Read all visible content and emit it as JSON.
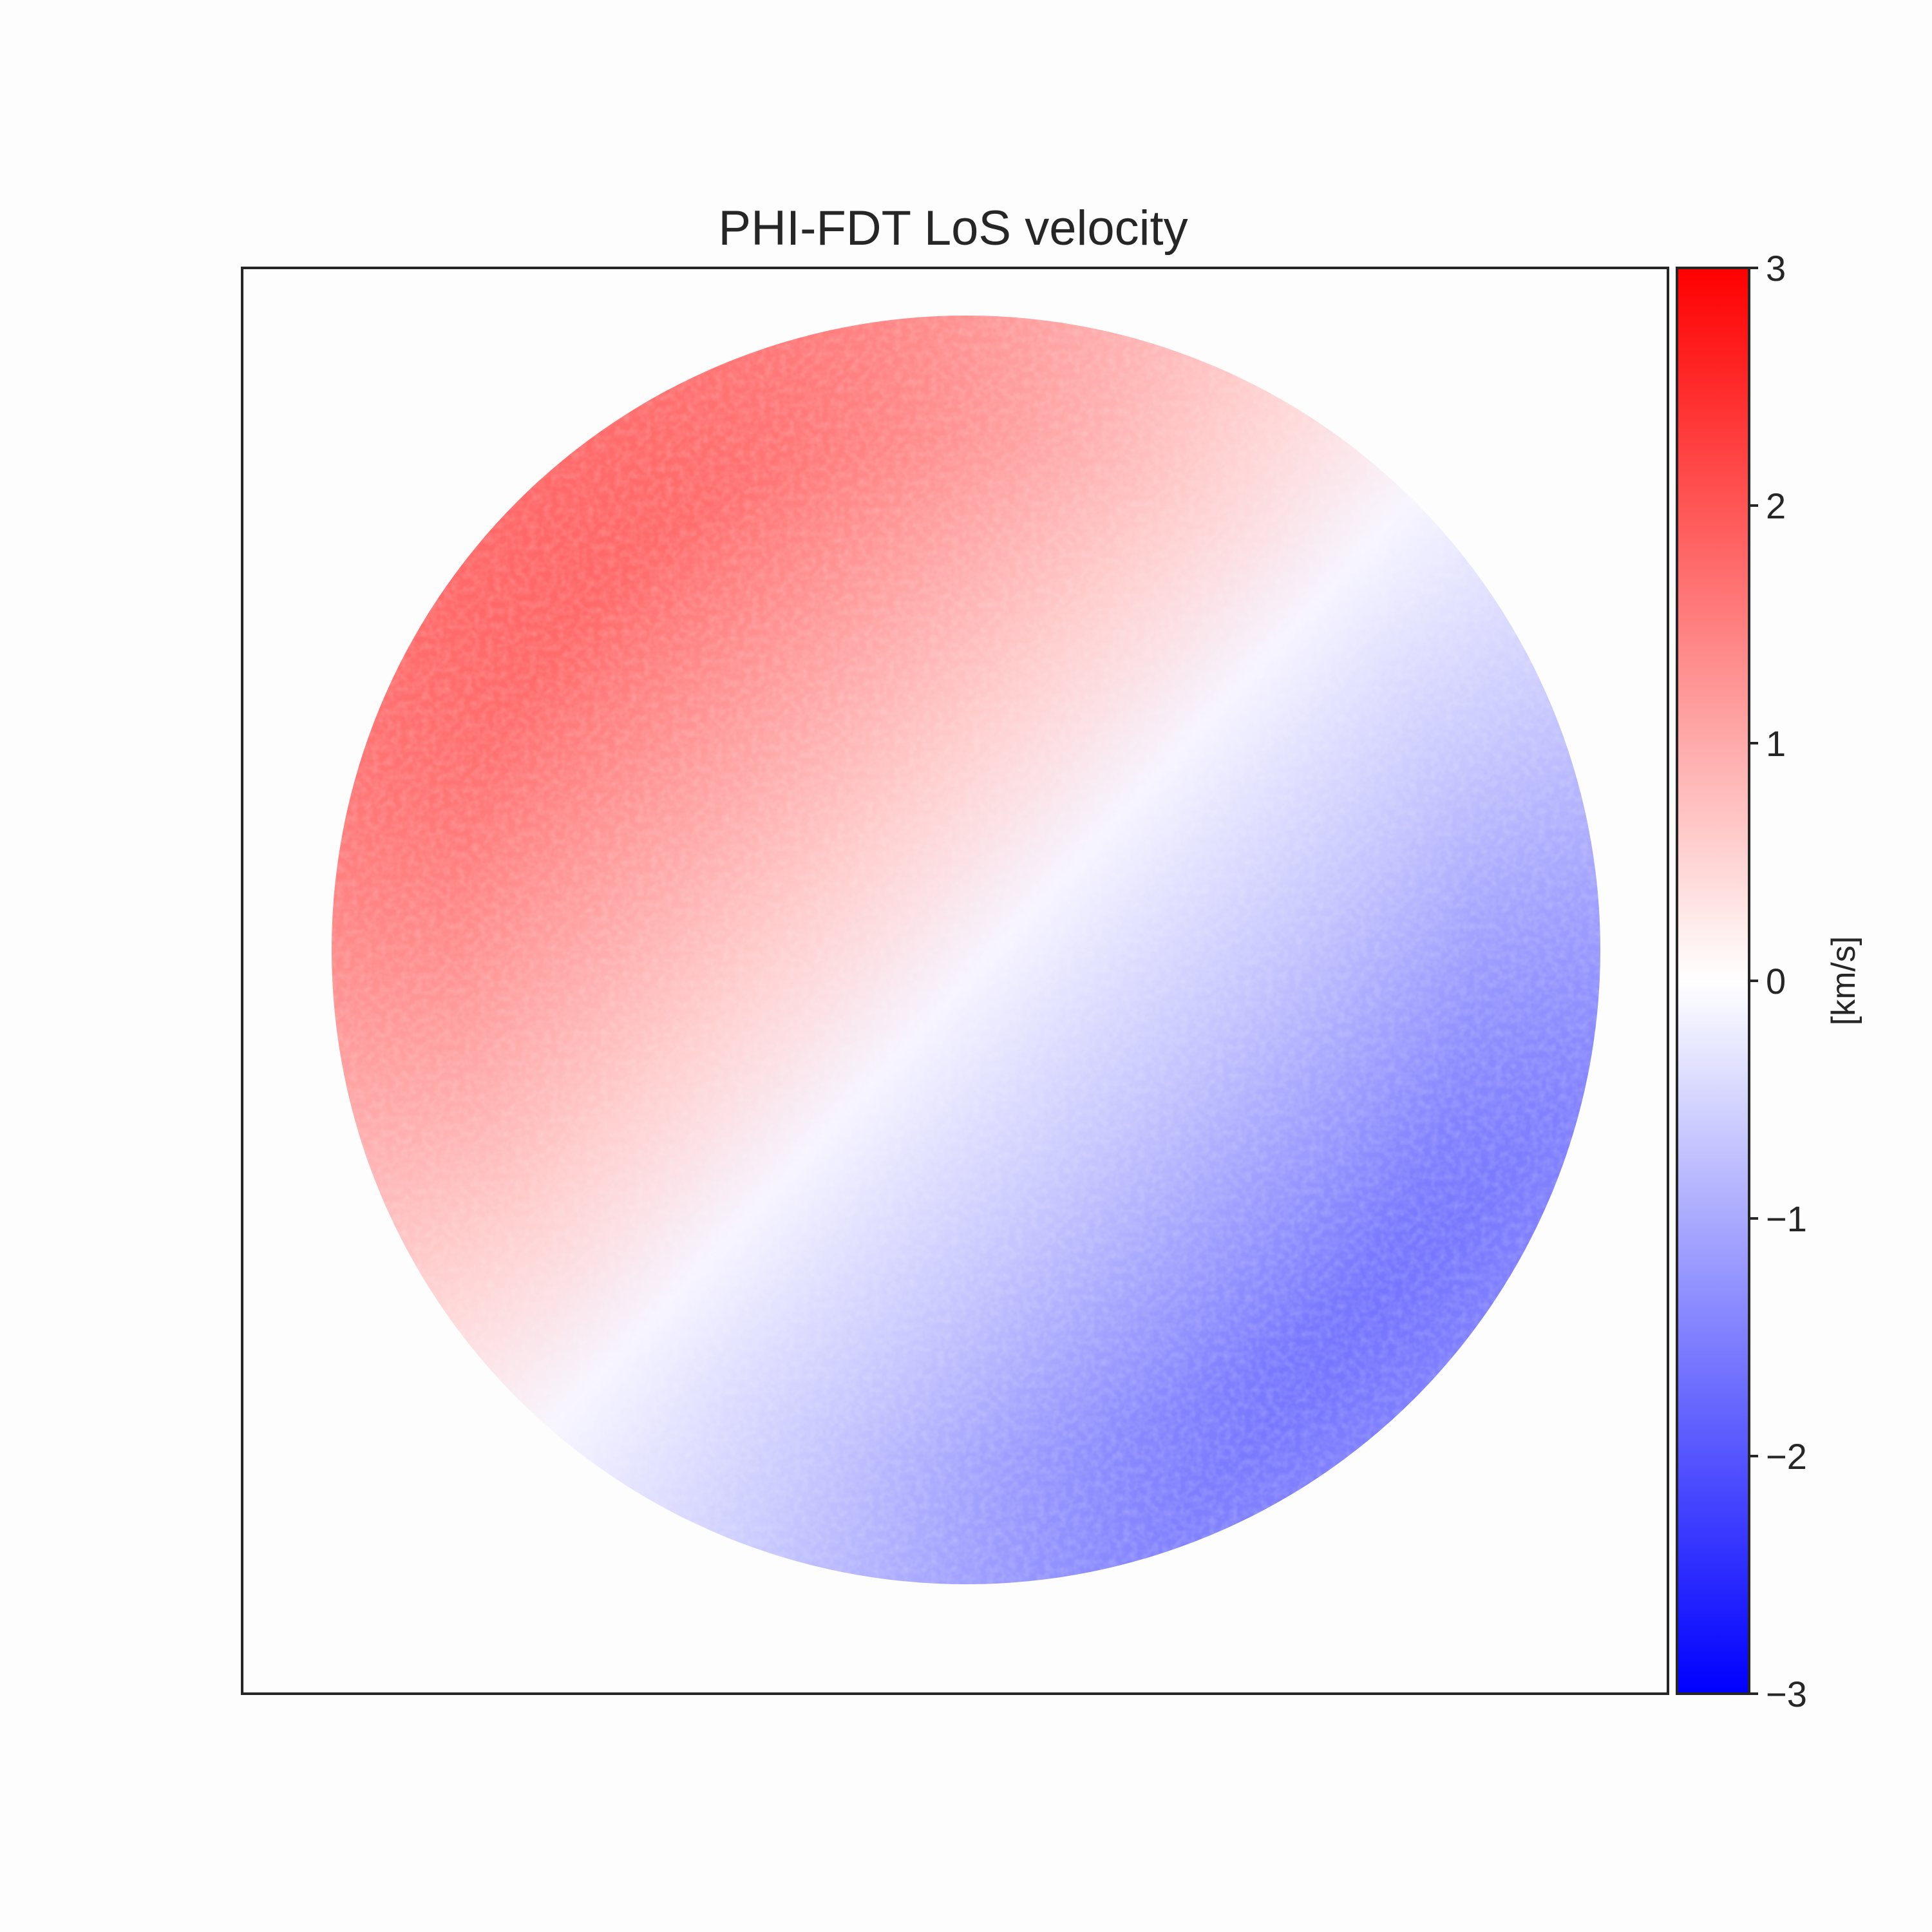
{
  "chart_data": {
    "type": "heatmap",
    "title": "PHI-FDT LoS velocity",
    "xlabel": "",
    "ylabel": "",
    "colorbar": {
      "label": "[km/s]",
      "vmin": -3,
      "vmax": 3,
      "ticks": [
        3,
        2,
        1,
        0,
        -1,
        -2,
        -3
      ],
      "tick_labels": [
        "3",
        "2",
        "1",
        "0",
        "−1",
        "−2",
        "−3"
      ],
      "colormap": "bwr",
      "colors": {
        "min": "#0000ff",
        "mid": "#ffffff",
        "max": "#ff0000"
      }
    },
    "image": {
      "content": "full solar disk line-of-sight velocity map",
      "redshift_region": "upper-left (east limb) up to about +2.5 km/s",
      "blueshift_region": "lower-right (west limb) down to about -1.8 km/s",
      "background_outside_disk": "no data"
    },
    "axes_ticks": "none",
    "grid": false
  }
}
